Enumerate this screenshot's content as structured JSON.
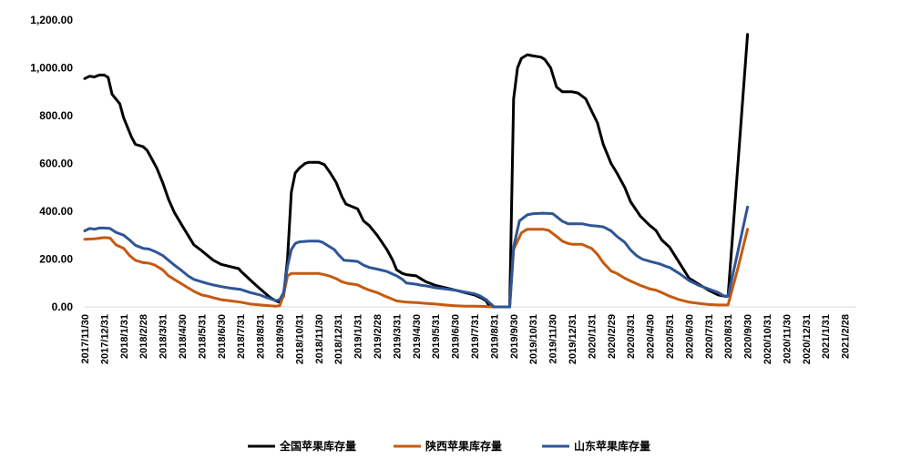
{
  "chart_data": {
    "type": "line",
    "title": "",
    "xlabel": "",
    "ylabel": "",
    "ylim": [
      0,
      1200
    ],
    "yticks": [
      "0.00",
      "200.00",
      "400.00",
      "600.00",
      "800.00",
      "1,000.00",
      "1,200.00"
    ],
    "ytick_values": [
      0,
      200,
      400,
      600,
      800,
      1000,
      1200
    ],
    "categories": [
      "2017/11/30",
      "2017/12/31",
      "2018/1/31",
      "2018/2/28",
      "2018/3/31",
      "2018/4/30",
      "2018/5/31",
      "2018/6/30",
      "2018/7/31",
      "2018/8/31",
      "2018/9/30",
      "2018/10/31",
      "2018/11/30",
      "2018/12/31",
      "2019/1/31",
      "2019/2/28",
      "2019/3/31",
      "2019/4/30",
      "2019/5/31",
      "2019/6/30",
      "2019/7/31",
      "2019/8/31",
      "2019/9/30",
      "2019/10/31",
      "2019/11/30",
      "2019/12/31",
      "2020/1/31",
      "2020/2/29",
      "2020/3/31",
      "2020/4/30",
      "2020/5/31",
      "2020/6/30",
      "2020/7/31",
      "2020/8/31",
      "2020/9/30",
      "2020/10/31",
      "2020/11/30",
      "2020/12/31",
      "2021/1/31",
      "2021/2/28"
    ],
    "legend_position": "bottom",
    "series": [
      {
        "name": "全国苹果库存量",
        "color": "#000000",
        "points": [
          [
            0,
            955
          ],
          [
            0.25,
            965
          ],
          [
            0.5,
            962
          ],
          [
            0.75,
            970
          ],
          [
            1,
            970
          ],
          [
            1.2,
            960
          ],
          [
            1.4,
            890
          ],
          [
            1.8,
            850
          ],
          [
            2,
            790
          ],
          [
            2.4,
            710
          ],
          [
            2.6,
            680
          ],
          [
            3,
            670
          ],
          [
            3.2,
            655
          ],
          [
            3.4,
            625
          ],
          [
            3.7,
            580
          ],
          [
            4,
            520
          ],
          [
            4.3,
            450
          ],
          [
            4.6,
            395
          ],
          [
            5,
            340
          ],
          [
            5.3,
            300
          ],
          [
            5.6,
            260
          ],
          [
            6,
            235
          ],
          [
            6.3,
            215
          ],
          [
            6.6,
            195
          ],
          [
            7,
            178
          ],
          [
            7.5,
            168
          ],
          [
            7.9,
            160
          ],
          [
            8,
            150
          ],
          [
            8.5,
            112
          ],
          [
            9,
            75
          ],
          [
            9.5,
            40
          ],
          [
            9.8,
            25
          ],
          [
            10,
            20
          ],
          [
            10.2,
            45
          ],
          [
            10.4,
            200
          ],
          [
            10.6,
            480
          ],
          [
            10.8,
            560
          ],
          [
            11,
            580
          ],
          [
            11.3,
            600
          ],
          [
            11.5,
            605
          ],
          [
            12,
            605
          ],
          [
            12.3,
            595
          ],
          [
            12.6,
            560
          ],
          [
            12.9,
            520
          ],
          [
            13.2,
            460
          ],
          [
            13.4,
            430
          ],
          [
            13.7,
            420
          ],
          [
            14,
            410
          ],
          [
            14.3,
            360
          ],
          [
            14.6,
            340
          ],
          [
            15,
            300
          ],
          [
            15.5,
            240
          ],
          [
            15.8,
            195
          ],
          [
            16,
            155
          ],
          [
            16.3,
            140
          ],
          [
            16.5,
            135
          ],
          [
            17,
            130
          ],
          [
            17.3,
            115
          ],
          [
            17.5,
            105
          ],
          [
            18,
            90
          ],
          [
            18.5,
            80
          ],
          [
            19,
            70
          ],
          [
            19.5,
            60
          ],
          [
            20,
            50
          ],
          [
            20.4,
            35
          ],
          [
            20.6,
            25
          ],
          [
            20.7,
            10
          ],
          [
            20.9,
            0
          ],
          [
            21.5,
            0
          ],
          [
            21.8,
            0
          ],
          [
            22,
            870
          ],
          [
            22.2,
            1000
          ],
          [
            22.4,
            1040
          ],
          [
            22.7,
            1055
          ],
          [
            23,
            1050
          ],
          [
            23.4,
            1045
          ],
          [
            23.6,
            1035
          ],
          [
            23.9,
            1000
          ],
          [
            24.2,
            920
          ],
          [
            24.5,
            900
          ],
          [
            25,
            900
          ],
          [
            25.3,
            895
          ],
          [
            25.7,
            870
          ],
          [
            26,
            820
          ],
          [
            26.3,
            770
          ],
          [
            26.6,
            680
          ],
          [
            27,
            600
          ],
          [
            27.3,
            560
          ],
          [
            27.7,
            500
          ],
          [
            28,
            440
          ],
          [
            28.5,
            380
          ],
          [
            29,
            340
          ],
          [
            29.3,
            320
          ],
          [
            29.6,
            280
          ],
          [
            30,
            250
          ],
          [
            30.5,
            185
          ],
          [
            31,
            120
          ],
          [
            31.5,
            95
          ],
          [
            32,
            70
          ],
          [
            32.5,
            50
          ],
          [
            32.8,
            45
          ],
          [
            33,
            45
          ],
          [
            33.5,
            590
          ],
          [
            34,
            1140
          ]
        ]
      },
      {
        "name": "陕西苹果库存量",
        "color": "#C55A11",
        "points": [
          [
            0,
            283
          ],
          [
            0.5,
            285
          ],
          [
            1,
            290
          ],
          [
            1.3,
            288
          ],
          [
            1.6,
            260
          ],
          [
            2,
            245
          ],
          [
            2.3,
            215
          ],
          [
            2.6,
            195
          ],
          [
            3,
            185
          ],
          [
            3.3,
            183
          ],
          [
            3.6,
            175
          ],
          [
            4,
            155
          ],
          [
            4.3,
            130
          ],
          [
            4.6,
            115
          ],
          [
            5,
            95
          ],
          [
            5.3,
            80
          ],
          [
            5.6,
            65
          ],
          [
            6,
            50
          ],
          [
            6.3,
            45
          ],
          [
            6.6,
            38
          ],
          [
            7,
            30
          ],
          [
            7.5,
            25
          ],
          [
            8,
            20
          ],
          [
            8.5,
            12
          ],
          [
            9,
            8
          ],
          [
            9.5,
            5
          ],
          [
            9.8,
            3
          ],
          [
            10,
            5
          ],
          [
            10.2,
            50
          ],
          [
            10.4,
            130
          ],
          [
            10.6,
            140
          ],
          [
            11,
            140
          ],
          [
            12,
            140
          ],
          [
            12.3,
            135
          ],
          [
            12.6,
            128
          ],
          [
            12.9,
            118
          ],
          [
            13.2,
            105
          ],
          [
            13.5,
            98
          ],
          [
            13.8,
            95
          ],
          [
            14,
            92
          ],
          [
            14.3,
            80
          ],
          [
            14.6,
            70
          ],
          [
            15,
            60
          ],
          [
            15.4,
            45
          ],
          [
            15.8,
            32
          ],
          [
            16,
            25
          ],
          [
            16.5,
            20
          ],
          [
            17,
            18
          ],
          [
            17.5,
            15
          ],
          [
            18,
            12
          ],
          [
            18.5,
            8
          ],
          [
            19,
            5
          ],
          [
            19.5,
            3
          ],
          [
            20,
            3
          ],
          [
            20.5,
            2
          ],
          [
            21,
            0
          ],
          [
            21.8,
            0
          ],
          [
            22,
            240
          ],
          [
            22.4,
            310
          ],
          [
            22.7,
            325
          ],
          [
            23,
            325
          ],
          [
            23.5,
            325
          ],
          [
            23.8,
            320
          ],
          [
            24.2,
            295
          ],
          [
            24.5,
            275
          ],
          [
            24.8,
            265
          ],
          [
            25,
            262
          ],
          [
            25.5,
            262
          ],
          [
            26,
            245
          ],
          [
            26.3,
            220
          ],
          [
            26.6,
            185
          ],
          [
            27,
            150
          ],
          [
            27.3,
            140
          ],
          [
            27.7,
            120
          ],
          [
            28,
            108
          ],
          [
            28.5,
            90
          ],
          [
            29,
            75
          ],
          [
            29.3,
            70
          ],
          [
            29.6,
            60
          ],
          [
            30,
            45
          ],
          [
            30.5,
            30
          ],
          [
            31,
            20
          ],
          [
            31.5,
            15
          ],
          [
            32,
            10
          ],
          [
            32.5,
            8
          ],
          [
            33,
            8
          ],
          [
            33.5,
            160
          ],
          [
            34,
            325
          ]
        ]
      },
      {
        "name": "山东苹果库存量",
        "color": "#2F5597",
        "points": [
          [
            0,
            318
          ],
          [
            0.25,
            328
          ],
          [
            0.5,
            325
          ],
          [
            0.75,
            330
          ],
          [
            1,
            330
          ],
          [
            1.3,
            328
          ],
          [
            1.6,
            312
          ],
          [
            2,
            300
          ],
          [
            2.3,
            280
          ],
          [
            2.6,
            258
          ],
          [
            3,
            245
          ],
          [
            3.3,
            242
          ],
          [
            3.6,
            232
          ],
          [
            4,
            215
          ],
          [
            4.3,
            195
          ],
          [
            4.6,
            175
          ],
          [
            5,
            150
          ],
          [
            5.3,
            130
          ],
          [
            5.6,
            115
          ],
          [
            6,
            105
          ],
          [
            6.3,
            98
          ],
          [
            6.6,
            92
          ],
          [
            7,
            85
          ],
          [
            7.5,
            78
          ],
          [
            8,
            73
          ],
          [
            8.5,
            60
          ],
          [
            9,
            50
          ],
          [
            9.3,
            40
          ],
          [
            9.6,
            32
          ],
          [
            9.8,
            26
          ],
          [
            10,
            30
          ],
          [
            10.2,
            60
          ],
          [
            10.4,
            170
          ],
          [
            10.6,
            240
          ],
          [
            10.8,
            265
          ],
          [
            11,
            272
          ],
          [
            11.5,
            275
          ],
          [
            12,
            275
          ],
          [
            12.2,
            270
          ],
          [
            12.5,
            255
          ],
          [
            12.8,
            240
          ],
          [
            13,
            220
          ],
          [
            13.3,
            195
          ],
          [
            13.6,
            193
          ],
          [
            14,
            190
          ],
          [
            14.3,
            175
          ],
          [
            14.6,
            165
          ],
          [
            15,
            158
          ],
          [
            15.5,
            148
          ],
          [
            16,
            130
          ],
          [
            16.3,
            115
          ],
          [
            16.5,
            100
          ],
          [
            17,
            95
          ],
          [
            17.3,
            90
          ],
          [
            17.5,
            88
          ],
          [
            18,
            80
          ],
          [
            18.5,
            75
          ],
          [
            19,
            70
          ],
          [
            19.5,
            62
          ],
          [
            20,
            55
          ],
          [
            20.3,
            45
          ],
          [
            20.6,
            30
          ],
          [
            20.8,
            15
          ],
          [
            21,
            0
          ],
          [
            21.8,
            0
          ],
          [
            22,
            250
          ],
          [
            22.3,
            360
          ],
          [
            22.7,
            385
          ],
          [
            23,
            390
          ],
          [
            23.5,
            392
          ],
          [
            24,
            390
          ],
          [
            24.2,
            378
          ],
          [
            24.5,
            358
          ],
          [
            24.8,
            348
          ],
          [
            25,
            348
          ],
          [
            25.5,
            348
          ],
          [
            26,
            340
          ],
          [
            26.3,
            338
          ],
          [
            26.6,
            335
          ],
          [
            27,
            318
          ],
          [
            27.3,
            295
          ],
          [
            27.7,
            270
          ],
          [
            28,
            238
          ],
          [
            28.3,
            215
          ],
          [
            28.6,
            200
          ],
          [
            29,
            190
          ],
          [
            29.5,
            180
          ],
          [
            29.8,
            170
          ],
          [
            30,
            165
          ],
          [
            30.5,
            140
          ],
          [
            31,
            110
          ],
          [
            31.5,
            90
          ],
          [
            32,
            75
          ],
          [
            32.5,
            60
          ],
          [
            32.8,
            45
          ],
          [
            33,
            45
          ],
          [
            33.5,
            230
          ],
          [
            34,
            418
          ]
        ]
      }
    ]
  }
}
